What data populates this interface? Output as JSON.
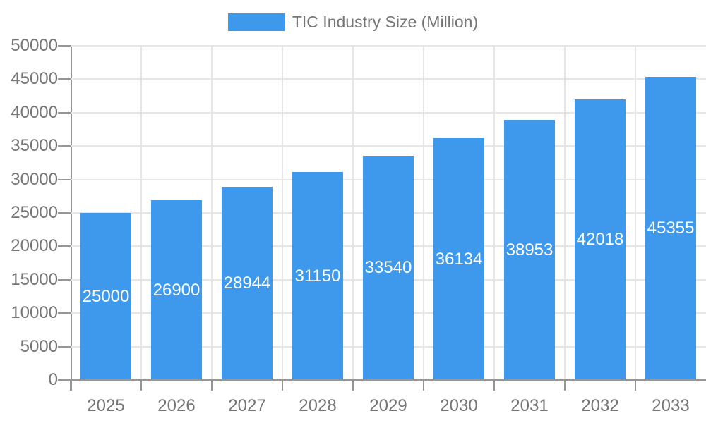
{
  "chart_data": {
    "type": "bar",
    "title": "",
    "legend": {
      "label": "TIC Industry Size (Million)",
      "position": "top-center"
    },
    "categories": [
      "2025",
      "2026",
      "2027",
      "2028",
      "2029",
      "2030",
      "2031",
      "2032",
      "2033"
    ],
    "series": [
      {
        "name": "TIC Industry Size (Million)",
        "values": [
          25000,
          26900,
          28944,
          31150,
          33540,
          36134,
          38953,
          42018,
          45355
        ]
      }
    ],
    "xlabel": "",
    "ylabel": "",
    "ylim": [
      0,
      50000
    ],
    "ytick_step": 5000,
    "ytick_labels": [
      "0",
      "5000",
      "10000",
      "15000",
      "20000",
      "25000",
      "30000",
      "35000",
      "40000",
      "45000",
      "50000"
    ],
    "grid": true,
    "bar_labels_inside": true,
    "colors": {
      "bar": "#3E99ED",
      "annotation_text": "#ffffff",
      "axis_text": "#757575",
      "axis_line": "#969696",
      "gridline": "#e6e6e6",
      "background": "#ffffff"
    }
  }
}
